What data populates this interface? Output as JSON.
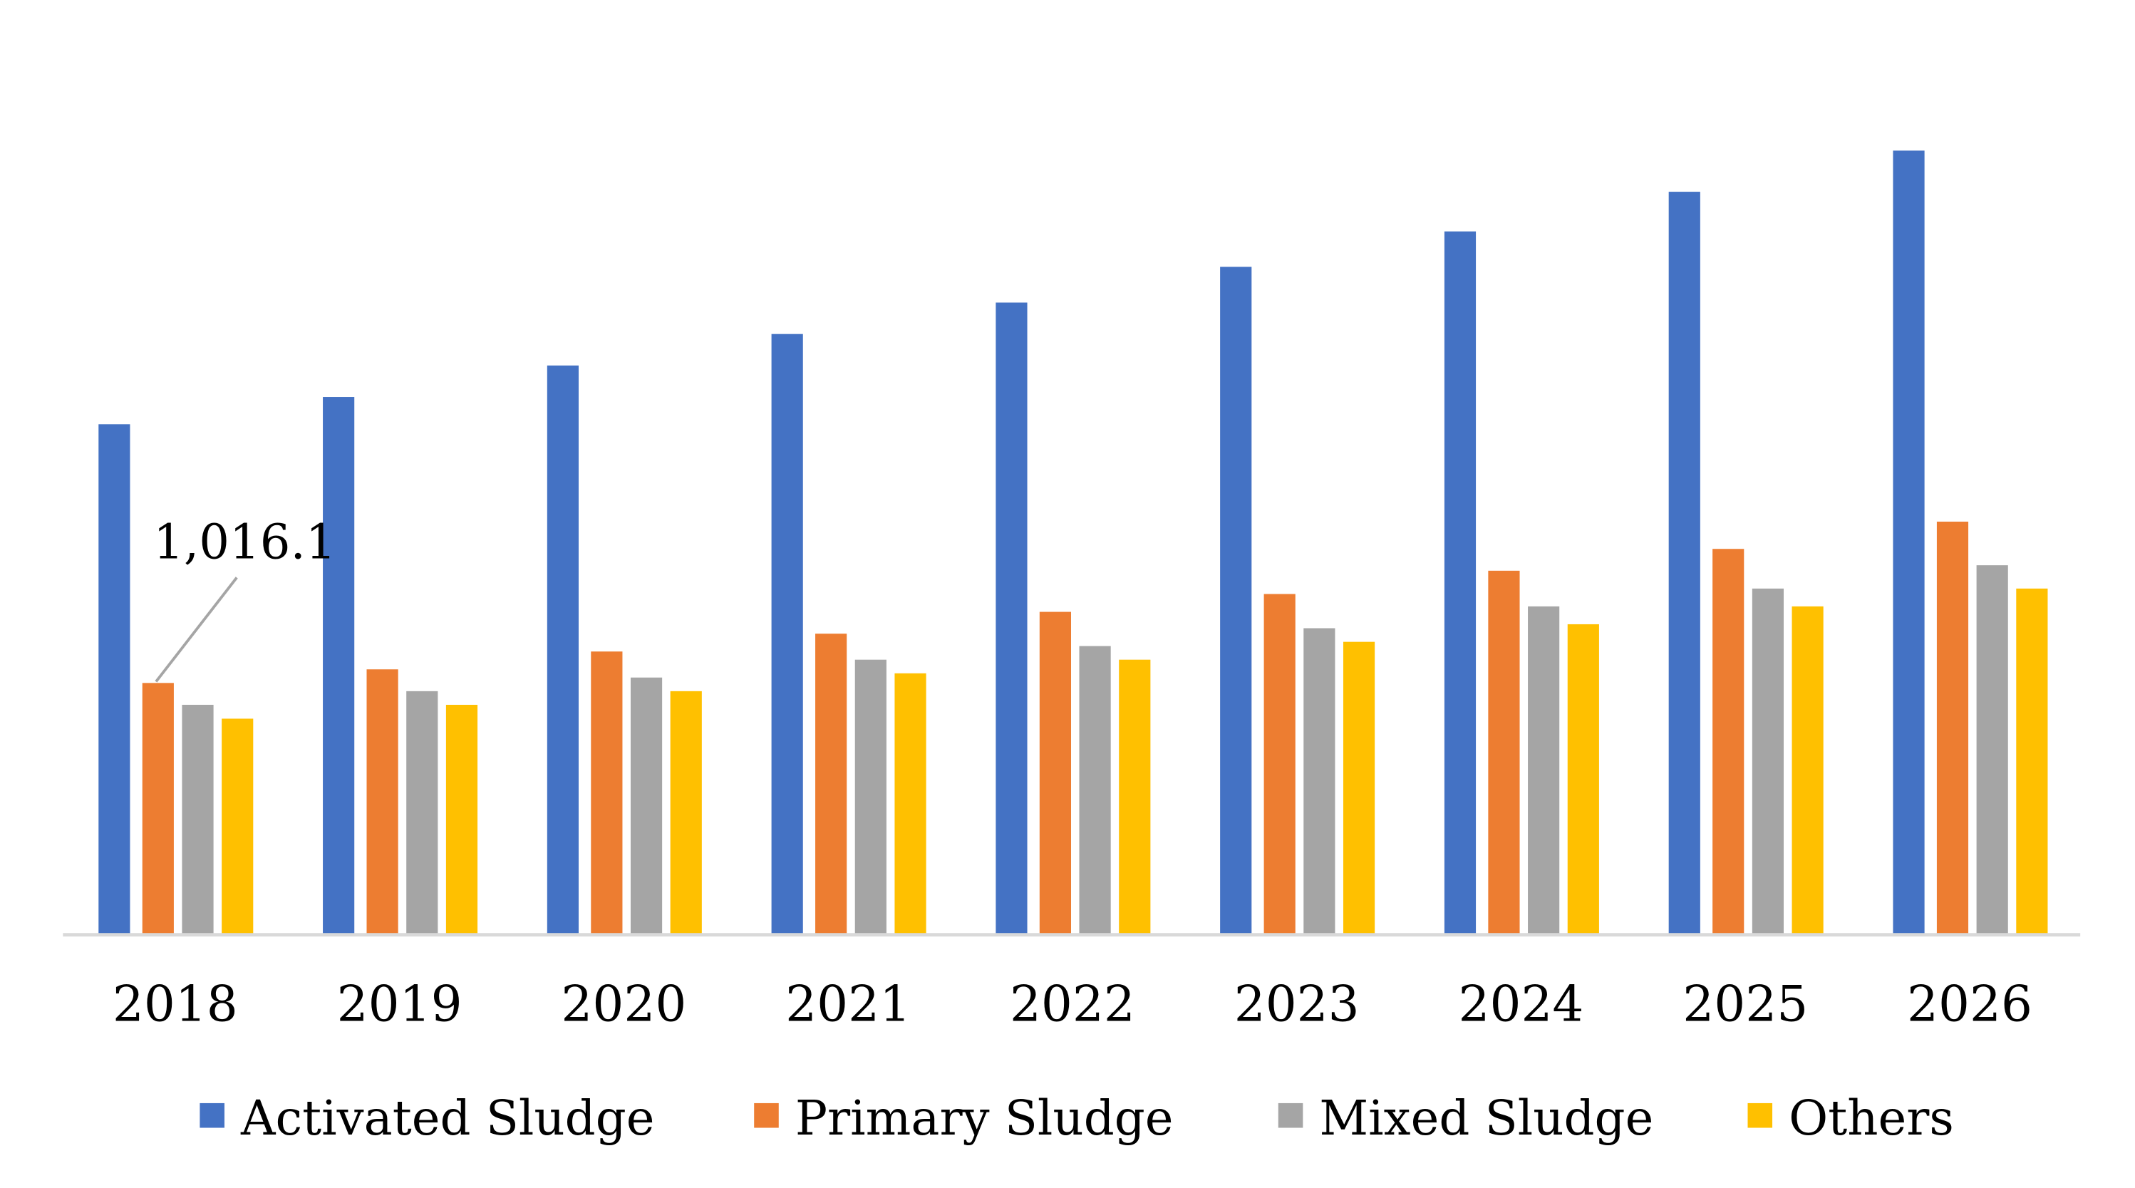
{
  "chart_data": {
    "type": "bar",
    "title": "",
    "xlabel": "",
    "ylabel": "",
    "categories": [
      "2018",
      "2019",
      "2020",
      "2021",
      "2022",
      "2023",
      "2024",
      "2025",
      "2026"
    ],
    "ylim": [
      0,
      3400
    ],
    "grid": false,
    "legend_position": "bottom",
    "series": [
      {
        "name": "Activated Sludge",
        "color": "#4472C4",
        "values": [
          2060,
          2170,
          2297,
          2424,
          2551,
          2695,
          2838,
          2998,
          3164
        ]
      },
      {
        "name": "Primary Sludge",
        "color": "#ED7D31",
        "values": [
          1016.1,
          1071,
          1143,
          1215,
          1303,
          1375,
          1469,
          1557,
          1667
        ]
      },
      {
        "name": "Mixed Sludge",
        "color": "#A5A5A5",
        "values": [
          928,
          983,
          1038,
          1110,
          1165,
          1237,
          1325,
          1397,
          1491
        ]
      },
      {
        "name": "Others",
        "color": "#FFC000",
        "values": [
          872,
          928,
          983,
          1055,
          1110,
          1182,
          1253,
          1325,
          1397
        ]
      }
    ],
    "annotations": [
      {
        "series": "Primary Sludge",
        "category": "2018",
        "text": "1,016.1"
      }
    ],
    "axis_line_color": "#D9D9D9"
  }
}
